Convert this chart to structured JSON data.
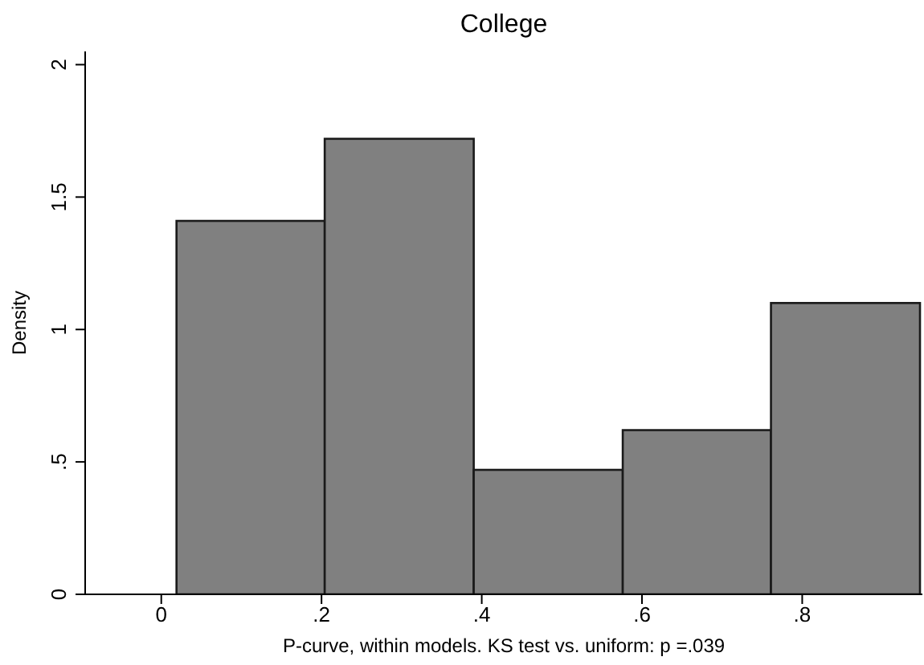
{
  "chart_data": {
    "type": "histogram",
    "title": "College",
    "xlabel": "P-curve, within models. KS test vs. uniform: p =.039",
    "ylabel": "Density",
    "bins": [
      0.019,
      0.204,
      0.39,
      0.576,
      0.761,
      0.947
    ],
    "values": [
      1.41,
      1.72,
      0.47,
      0.62,
      1.1
    ],
    "color": "#808080",
    "xlim": [
      -0.095,
      0.95
    ],
    "xticks": [
      0,
      {
        "value": 0.2,
        "label": ".2"
      },
      {
        "value": 0.4,
        "label": ".4"
      },
      {
        "value": 0.6,
        "label": ".6"
      },
      {
        "value": 0.8,
        "label": ".8"
      }
    ],
    "ylim": [
      0,
      2.05
    ],
    "yticks": [
      0,
      {
        "value": 0.5,
        "label": ".5"
      },
      1,
      1.5,
      2
    ],
    "grid": false,
    "legend": false
  }
}
